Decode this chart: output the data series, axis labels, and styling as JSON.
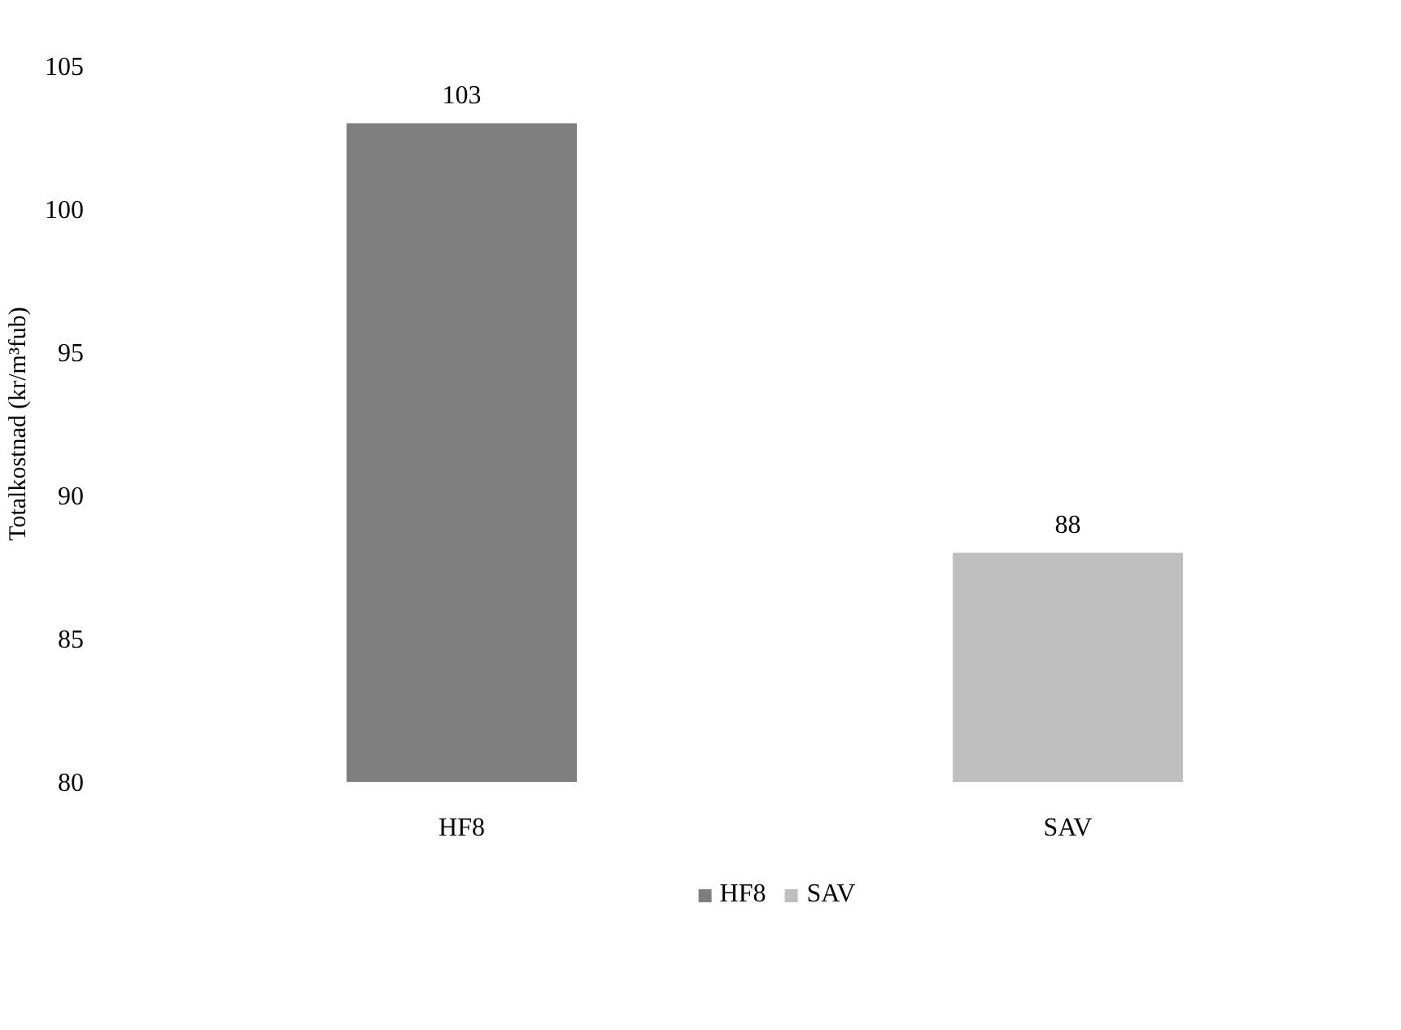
{
  "chart_data": {
    "type": "bar",
    "ylabel": "Totalkostnad (kr/m³fub)",
    "categories": [
      "HF8",
      "SAV"
    ],
    "series": [
      {
        "name": "HF8",
        "color": "#7f7f7f",
        "values": [
          103,
          null
        ]
      },
      {
        "name": "SAV",
        "color": "#bfbfbf",
        "values": [
          null,
          88
        ]
      }
    ],
    "ylim": [
      80,
      105
    ],
    "yticks": [
      80,
      85,
      90,
      95,
      100,
      105
    ],
    "grid": false,
    "legend": "bottom",
    "data_labels": true
  }
}
